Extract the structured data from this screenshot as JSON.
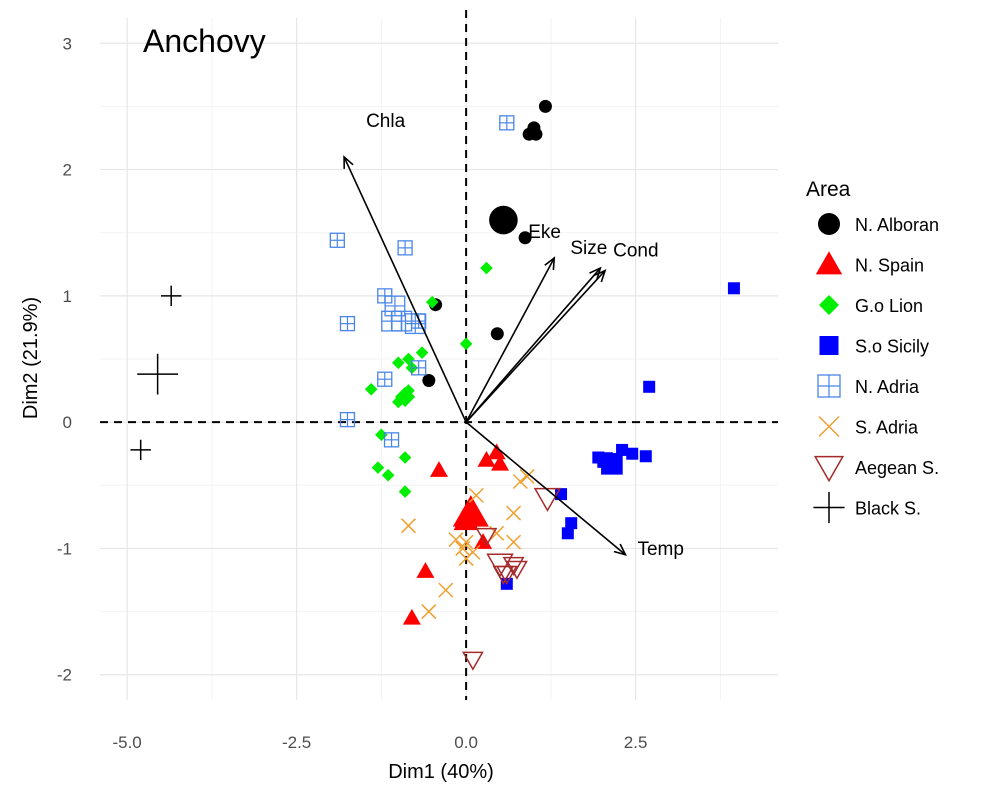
{
  "chart_data": {
    "type": "scatter",
    "title": "Anchovy",
    "xlabel": "Dim1 (40%)",
    "ylabel": "Dim2 (21.9%)",
    "xlim": [
      -5.4,
      4.6
    ],
    "ylim": [
      -2.2,
      3.2
    ],
    "x_ticks": [
      -5.0,
      -2.5,
      0.0,
      2.5
    ],
    "x_tick_labels": [
      "-5.0",
      "-2.5",
      "0.0",
      "2.5"
    ],
    "y_ticks": [
      -2,
      -1,
      0,
      1,
      2,
      3
    ],
    "y_tick_labels": [
      "-2",
      "-1",
      "0",
      "1",
      "2",
      "3"
    ],
    "grid": true,
    "reference_lines": [
      {
        "axis": "x",
        "value": 0,
        "style": "dashed"
      },
      {
        "axis": "y",
        "value": 0,
        "style": "dashed"
      }
    ],
    "legend": {
      "title": "Area",
      "position": "right"
    },
    "vectors": [
      {
        "label": "Chla",
        "x": -1.8,
        "y": 2.1
      },
      {
        "label": "Eke",
        "x": 1.3,
        "y": 1.3
      },
      {
        "label": "Size",
        "x": 1.98,
        "y": 1.22
      },
      {
        "label": "Cond",
        "x": 2.05,
        "y": 1.2
      },
      {
        "label": "Temp",
        "x": 2.35,
        "y": -1.05
      }
    ],
    "series": [
      {
        "name": "N. Alboran",
        "shape": "circle",
        "color": "#000000",
        "points": [
          [
            1.17,
            2.5
          ],
          [
            1.0,
            2.33
          ],
          [
            0.93,
            2.28
          ],
          [
            1.03,
            2.28
          ],
          [
            0.55,
            1.6
          ],
          [
            0.87,
            1.46
          ],
          [
            -0.45,
            0.93
          ],
          [
            0.46,
            0.7
          ],
          [
            -0.55,
            0.33
          ]
        ],
        "sizes": [
          1,
          1,
          1,
          1,
          2.2,
          1,
          1,
          1,
          1
        ]
      },
      {
        "name": "N. Spain",
        "shape": "triangle",
        "color": "#ff0000",
        "points": [
          [
            0.45,
            -0.24
          ],
          [
            0.3,
            -0.3
          ],
          [
            0.5,
            -0.33
          ],
          [
            -0.4,
            -0.38
          ],
          [
            0.07,
            -0.72
          ],
          [
            0.0,
            -0.78
          ],
          [
            0.25,
            -0.95
          ],
          [
            -0.6,
            -1.18
          ],
          [
            -0.8,
            -1.55
          ]
        ],
        "sizes": [
          1,
          1,
          1,
          1,
          2,
          1.4,
          1,
          1,
          1
        ]
      },
      {
        "name": "G.o Lion",
        "shape": "diamond",
        "color": "#00ee00",
        "points": [
          [
            0.3,
            1.22
          ],
          [
            -0.5,
            0.95
          ],
          [
            0.0,
            0.62
          ],
          [
            -0.65,
            0.55
          ],
          [
            -0.85,
            0.5
          ],
          [
            -1.0,
            0.47
          ],
          [
            -0.8,
            0.43
          ],
          [
            -0.85,
            0.25
          ],
          [
            -1.4,
            0.26
          ],
          [
            -1.0,
            0.16
          ],
          [
            -0.9,
            0.2
          ],
          [
            -1.25,
            -0.1
          ],
          [
            -0.9,
            -0.28
          ],
          [
            -1.3,
            -0.36
          ],
          [
            -1.15,
            -0.42
          ],
          [
            -0.9,
            -0.55
          ]
        ],
        "sizes": [
          1,
          1,
          1,
          1,
          1,
          1,
          1,
          1,
          1,
          1,
          1.6,
          1,
          1,
          1,
          1,
          1
        ]
      },
      {
        "name": "S.o Sicily",
        "shape": "square",
        "color": "#0000ff",
        "points": [
          [
            3.95,
            1.06
          ],
          [
            2.7,
            0.28
          ],
          [
            2.3,
            -0.22
          ],
          [
            2.45,
            -0.25
          ],
          [
            2.65,
            -0.27
          ],
          [
            1.95,
            -0.28
          ],
          [
            2.05,
            -0.3
          ],
          [
            2.15,
            -0.33
          ],
          [
            1.4,
            -0.57
          ],
          [
            1.55,
            -0.8
          ],
          [
            1.5,
            -0.88
          ],
          [
            0.6,
            -1.28
          ]
        ],
        "sizes": [
          1,
          1,
          1,
          1,
          1,
          1,
          1.3,
          1.8,
          1,
          1,
          1,
          1
        ]
      },
      {
        "name": "N. Adria",
        "shape": "square-cross",
        "color": "#4a86e8",
        "points": [
          [
            0.6,
            2.37
          ],
          [
            -1.9,
            1.44
          ],
          [
            -0.9,
            1.38
          ],
          [
            -1.2,
            1.0
          ],
          [
            -1.05,
            0.92
          ],
          [
            -1.1,
            0.8
          ],
          [
            -0.95,
            0.8
          ],
          [
            -0.75,
            0.78
          ],
          [
            -1.75,
            0.78
          ],
          [
            -0.7,
            0.8
          ],
          [
            -0.7,
            0.43
          ],
          [
            -1.2,
            0.34
          ],
          [
            -1.75,
            0.02
          ],
          [
            -1.1,
            -0.14
          ]
        ],
        "sizes": [
          1,
          1,
          1,
          1,
          1.4,
          1.4,
          1.4,
          1.4,
          1,
          1,
          1,
          1,
          1,
          1
        ]
      },
      {
        "name": "S. Adria",
        "shape": "x",
        "color": "#f0a030",
        "points": [
          [
            0.9,
            -0.43
          ],
          [
            0.8,
            -0.47
          ],
          [
            0.15,
            -0.58
          ],
          [
            0.7,
            -0.72
          ],
          [
            -0.85,
            -0.82
          ],
          [
            0.45,
            -0.88
          ],
          [
            -0.15,
            -0.93
          ],
          [
            0.0,
            -0.95
          ],
          [
            0.7,
            -0.95
          ],
          [
            -0.05,
            -1.0
          ],
          [
            0.1,
            -1.03
          ],
          [
            0.0,
            -1.08
          ],
          [
            -0.3,
            -1.33
          ],
          [
            -0.55,
            -1.5
          ]
        ],
        "sizes": [
          1,
          1,
          1,
          1,
          1,
          1,
          1,
          1,
          1,
          1,
          1,
          1,
          1,
          1
        ]
      },
      {
        "name": "Aegean S.",
        "shape": "triangle-open",
        "color": "#a52a2a",
        "points": [
          [
            1.2,
            -0.6
          ],
          [
            0.3,
            -0.9
          ],
          [
            0.5,
            -1.12
          ],
          [
            0.7,
            -1.13
          ],
          [
            0.75,
            -1.16
          ],
          [
            0.55,
            -1.2
          ],
          [
            0.6,
            -1.2
          ],
          [
            0.1,
            -1.88
          ]
        ],
        "sizes": [
          1.3,
          1,
          1.3,
          1,
          1,
          1,
          1,
          1
        ]
      },
      {
        "name": "Black S.",
        "shape": "plus",
        "color": "#000000",
        "points": [
          [
            -4.35,
            1.0
          ],
          [
            -4.55,
            0.38
          ],
          [
            -4.8,
            -0.22
          ]
        ],
        "sizes": [
          1,
          2,
          1
        ]
      }
    ]
  }
}
